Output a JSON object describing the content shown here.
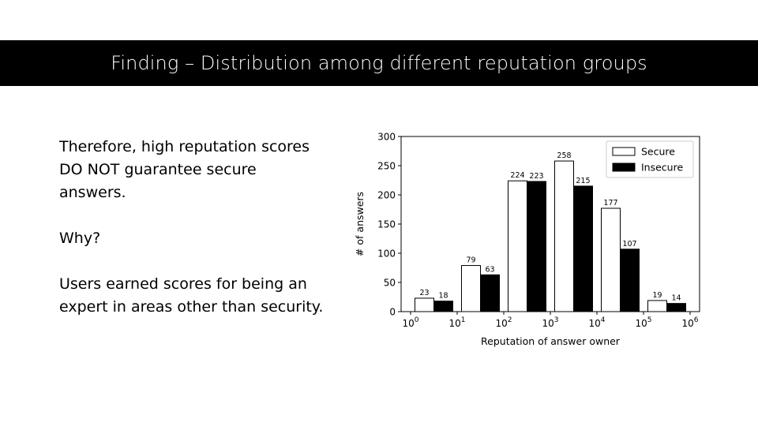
{
  "slide": {
    "title": "Finding – Distribution among different reputation groups",
    "paragraphs": [
      "Therefore, high reputation scores DO NOT guarantee secure answers.",
      "Why?",
      "Users earned scores for being an expert in areas other than security."
    ]
  },
  "chart_data": {
    "type": "bar",
    "title": "",
    "xlabel": "Reputation of answer owner",
    "ylabel": "# of answers",
    "x_scale": "log",
    "x_ticks": [
      "10^0",
      "10^1",
      "10^2",
      "10^3",
      "10^4",
      "10^5",
      "10^6"
    ],
    "categories": [
      "10^0–10^1",
      "10^1–10^2",
      "10^2–10^3",
      "10^3–10^4",
      "10^4–10^5",
      "10^5–10^6"
    ],
    "series": [
      {
        "name": "Secure",
        "values": [
          23,
          79,
          224,
          258,
          177,
          19
        ],
        "color": "#ffffff"
      },
      {
        "name": "Insecure",
        "values": [
          18,
          63,
          223,
          215,
          107,
          14
        ],
        "color": "#000000"
      }
    ],
    "ylim": [
      0,
      300
    ],
    "y_ticks": [
      0,
      50,
      100,
      150,
      200,
      250,
      300
    ],
    "legend_position": "top-right",
    "grid": false
  }
}
